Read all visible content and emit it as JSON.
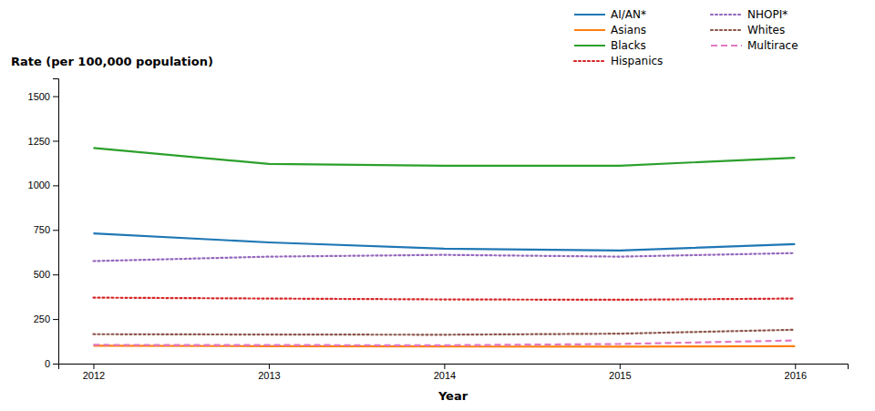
{
  "chart_data": {
    "type": "line",
    "x": [
      2012,
      2013,
      2014,
      2015,
      2016
    ],
    "series": [
      {
        "name": "AI/AN*",
        "values": [
          730,
          680,
          645,
          635,
          670
        ],
        "line_style": "solid"
      },
      {
        "name": "Asians",
        "values": [
          100,
          98,
          96,
          95,
          98
        ],
        "line_style": "solid"
      },
      {
        "name": "Blacks",
        "values": [
          1210,
          1120,
          1110,
          1110,
          1155
        ],
        "line_style": "solid"
      },
      {
        "name": "Hispanics",
        "values": [
          370,
          365,
          360,
          358,
          365
        ],
        "line_style": "dotted"
      },
      {
        "name": "NHOPI*",
        "values": [
          575,
          600,
          610,
          600,
          620
        ],
        "line_style": "dotted"
      },
      {
        "name": "Whites",
        "values": [
          165,
          163,
          162,
          168,
          190
        ],
        "line_style": "dotted"
      },
      {
        "name": "Multirace",
        "values": [
          105,
          104,
          103,
          110,
          130
        ],
        "line_style": "dashed"
      }
    ],
    "xlabel": "Year",
    "ylabel": "Rate (per 100,000 population)",
    "xlim": [
      2011.8,
      2016.3
    ],
    "xticks": [
      2012,
      2013,
      2014,
      2015,
      2016
    ],
    "ylim": [
      0,
      1600
    ],
    "yticks": [
      0,
      250,
      500,
      750,
      1000,
      1250,
      1500
    ],
    "grid": false,
    "legend": "upper right"
  }
}
